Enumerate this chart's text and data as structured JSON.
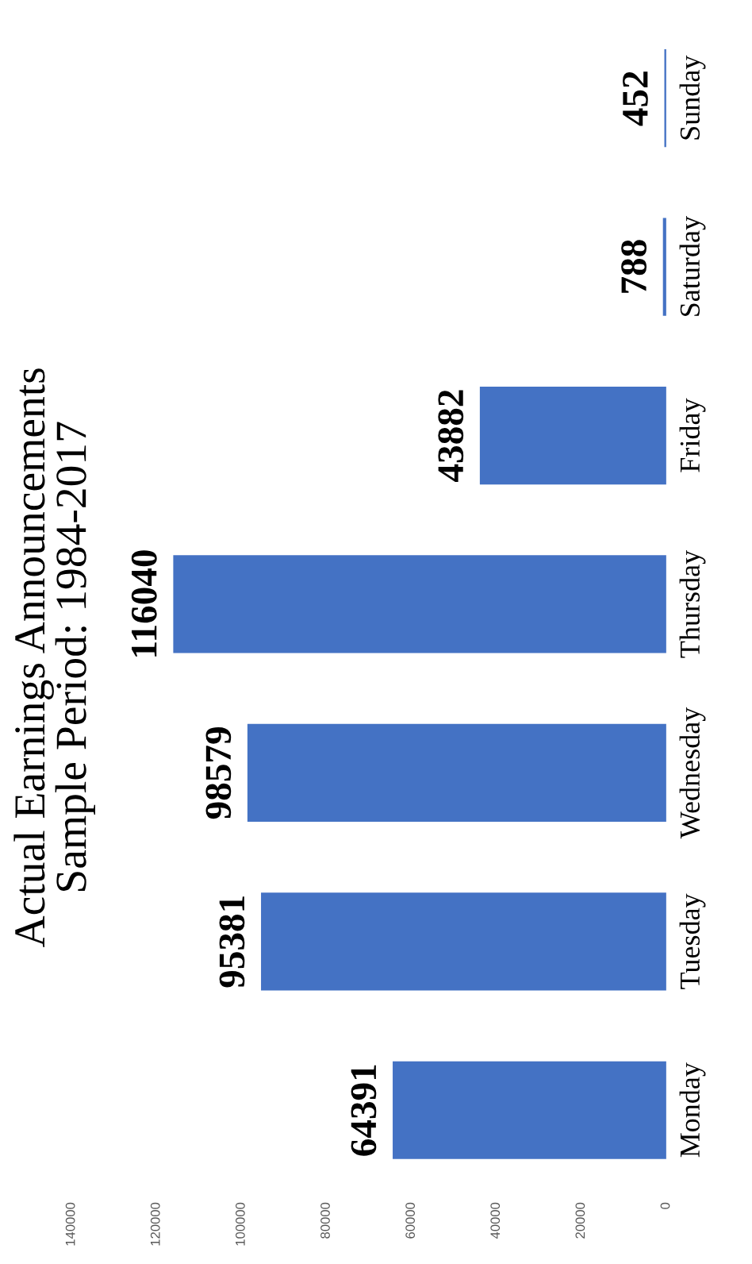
{
  "chart_data": {
    "type": "bar",
    "orientation": "horizontal",
    "title": "Actual Earnings Announcements",
    "subtitle": "Sample Period: 1984-2017",
    "categories": [
      "Sunday",
      "Saturday",
      "Friday",
      "Thursday",
      "Wednesday",
      "Tuesday",
      "Monday"
    ],
    "values": [
      452,
      788,
      43882,
      116040,
      98579,
      95381,
      64391
    ],
    "color": "#4472c4",
    "xlim": [
      140000,
      0
    ],
    "xticks": [
      140000,
      120000,
      100000,
      80000,
      60000,
      40000,
      20000,
      0
    ],
    "data_labels": true,
    "grid": false,
    "legend": false
  }
}
